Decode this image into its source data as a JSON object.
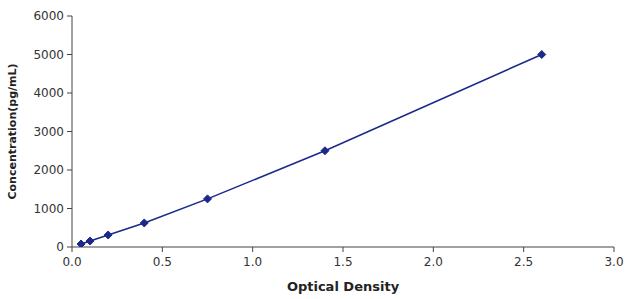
{
  "chart_data": {
    "type": "line",
    "x": [
      0.05,
      0.1,
      0.2,
      0.4,
      0.75,
      1.4,
      2.6
    ],
    "values": [
      78,
      156,
      312,
      625,
      1250,
      2500,
      5000
    ],
    "xlabel": "Optical Density",
    "ylabel": "Concentration(pg/mL)",
    "xlim": [
      0,
      3
    ],
    "ylim": [
      0,
      6000
    ],
    "xticks": [
      {
        "value": 0,
        "label": "0.0"
      },
      0.5,
      {
        "value": 1,
        "label": "1.0"
      },
      1.5,
      {
        "value": 2,
        "label": "2.0"
      },
      2.5,
      {
        "value": 3,
        "label": "3.0"
      }
    ],
    "yticks": [
      0,
      1000,
      2000,
      3000,
      4000,
      5000,
      6000
    ],
    "color": "#1B2A8A",
    "marker": "diamond",
    "line_style": "solid",
    "grid": false
  }
}
